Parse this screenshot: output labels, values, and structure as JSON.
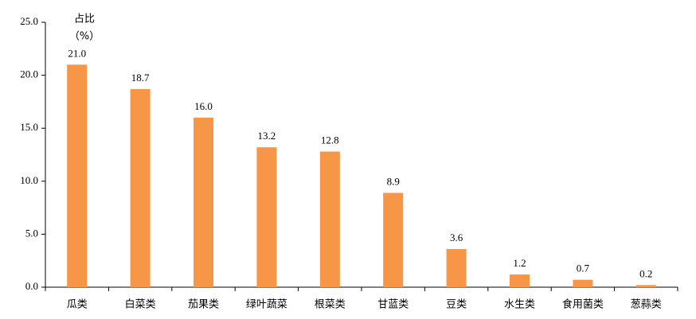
{
  "chart_data": {
    "type": "bar",
    "y_label": [
      "占比",
      "（%）"
    ],
    "categories": [
      "瓜类",
      "白菜类",
      "茄果类",
      "绿叶蔬菜",
      "根菜类",
      "甘蓝类",
      "豆类",
      "水生类",
      "食用菌类",
      "葱蒜类"
    ],
    "values": [
      21.0,
      18.7,
      16.0,
      13.2,
      12.8,
      8.9,
      3.6,
      1.2,
      0.7,
      0.2
    ],
    "value_labels": [
      "21.0",
      "18.7",
      "16.0",
      "13.2",
      "12.8",
      "8.9",
      "3.6",
      "1.2",
      "0.7",
      "0.2"
    ],
    "color": "#f79646",
    "ylim": [
      0,
      25
    ],
    "yticks": [
      {
        "value": 0,
        "label": "0.0"
      },
      {
        "value": 5,
        "label": "5.0"
      },
      {
        "value": 10,
        "label": "10.0"
      },
      {
        "value": 15,
        "label": "15.0"
      },
      {
        "value": 20,
        "label": "20.0"
      },
      {
        "value": 25,
        "label": "25.0"
      }
    ]
  }
}
